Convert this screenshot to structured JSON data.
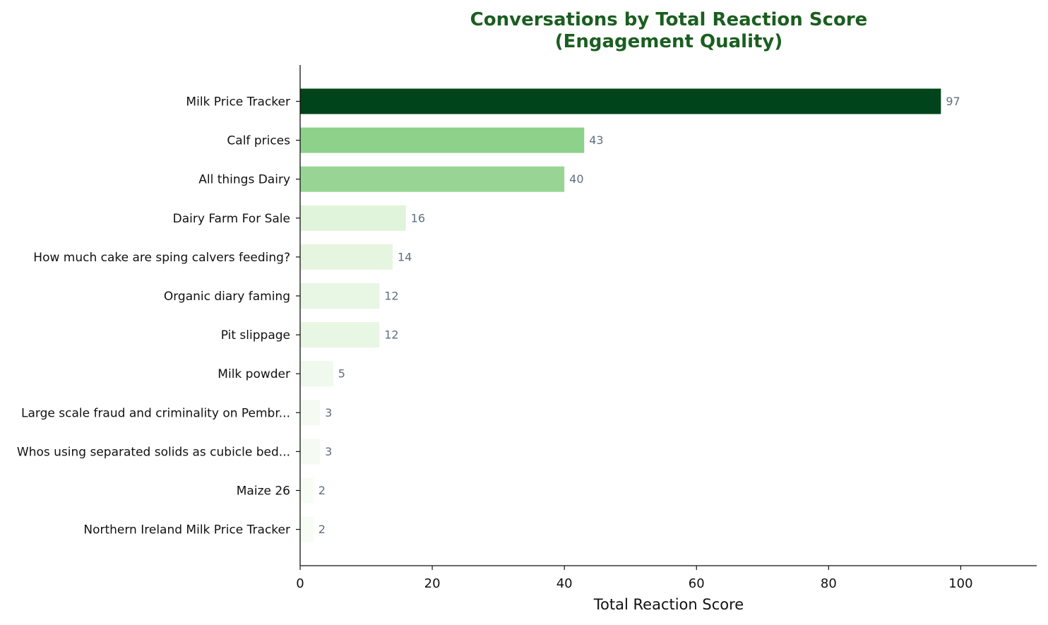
{
  "chart_data": {
    "type": "bar",
    "orientation": "horizontal",
    "title": [
      "Conversations by Total Reaction Score",
      "(Engagement Quality)"
    ],
    "xlabel": "Total Reaction Score",
    "ylabel": "",
    "xlim": [
      0,
      111.5
    ],
    "xticks": [
      0,
      20,
      40,
      60,
      80,
      100
    ],
    "grid": false,
    "categories": [
      "Milk Price Tracker",
      "Calf prices",
      "All things Dairy",
      "Dairy Farm For Sale",
      "How much cake are sping calvers feeding?",
      "Organic  diary faming",
      "Pit slippage",
      "Milk powder",
      "Large scale fraud and criminality on Pembr...",
      "Whos using separated solids as cubicle bed...",
      "Maize 26",
      "Northern Ireland Milk Price Tracker"
    ],
    "values": [
      97,
      43,
      40,
      16,
      14,
      12,
      12,
      5,
      3,
      3,
      2,
      2
    ],
    "colors": [
      "#00441b",
      "#8ed18a",
      "#98d594",
      "#e0f3db",
      "#e5f5e0",
      "#e8f6e4",
      "#e8f6e4",
      "#f0f9ed",
      "#f5fbf3",
      "#f5fbf3",
      "#f7fcf5",
      "#f7fcf5"
    ],
    "color_scale": "Greens"
  }
}
